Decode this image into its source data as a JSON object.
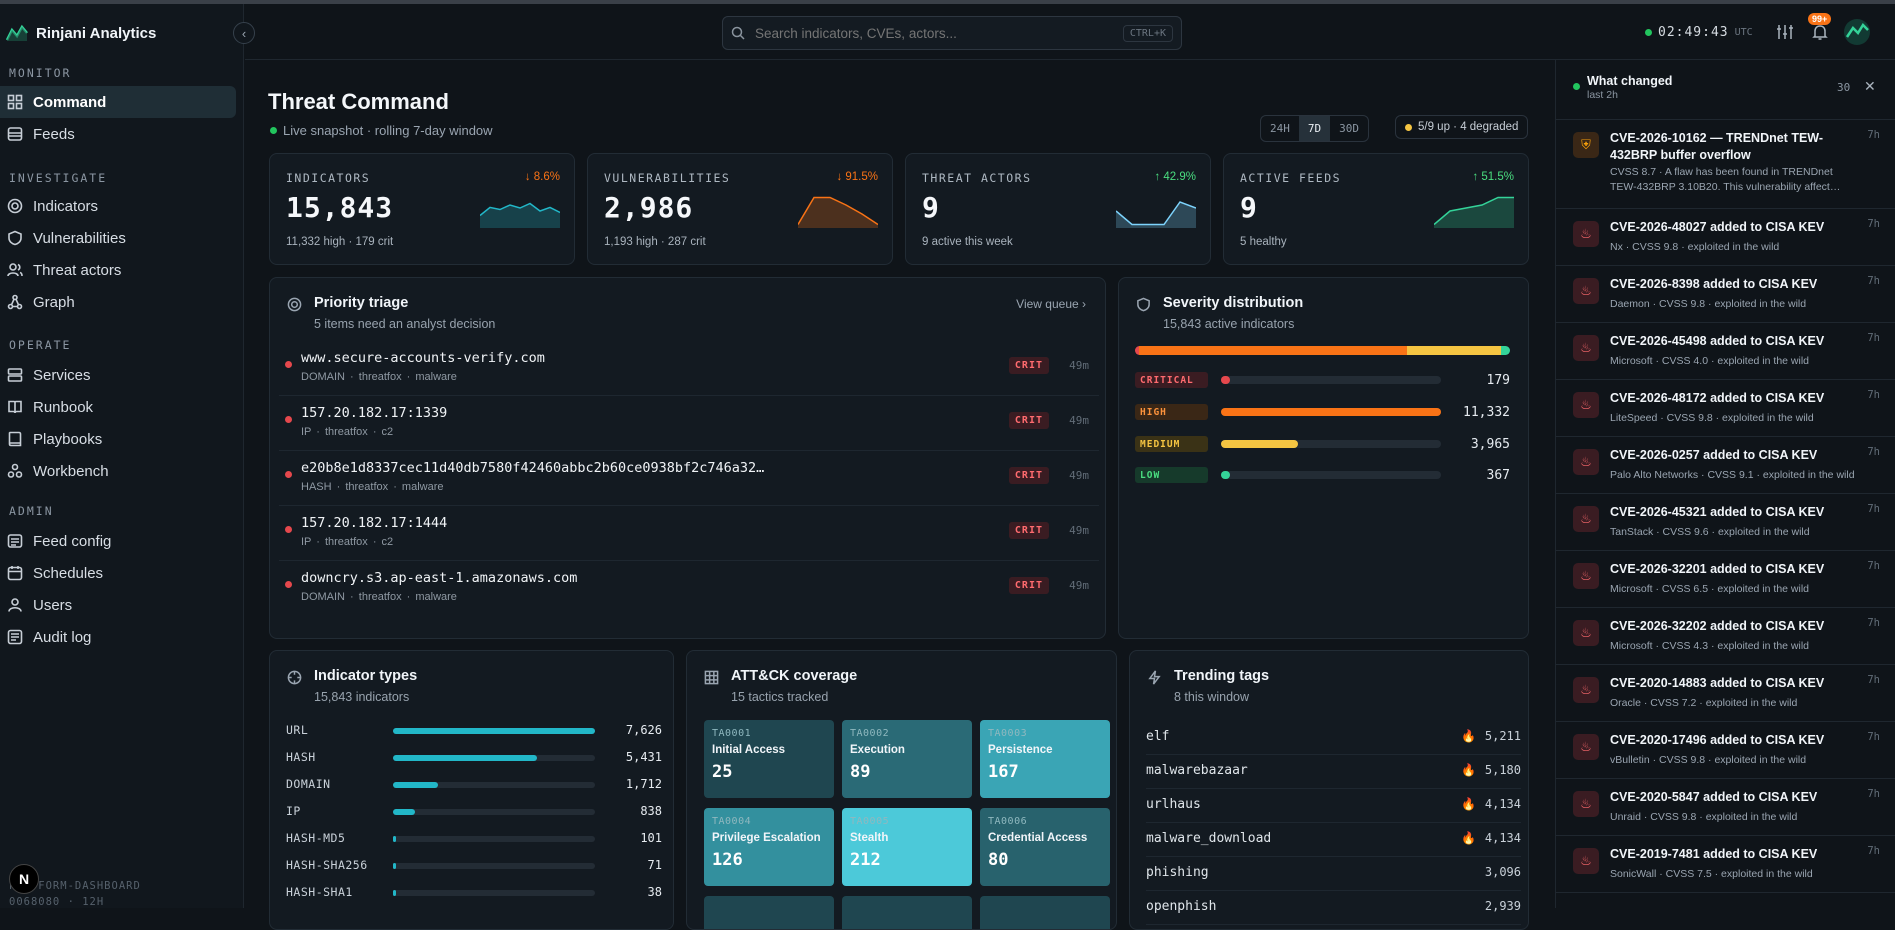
{
  "app": {
    "name": "Rinjani Analytics"
  },
  "sidebar": {
    "sections": [
      {
        "label": "MONITOR"
      },
      {
        "label": "INVESTIGATE"
      },
      {
        "label": "OPERATE"
      },
      {
        "label": "ADMIN"
      }
    ],
    "items": [
      {
        "label": "Command",
        "icon": "grid-icon",
        "active": true
      },
      {
        "label": "Feeds",
        "icon": "database-icon"
      },
      {
        "label": "Indicators",
        "icon": "target-icon"
      },
      {
        "label": "Vulnerabilities",
        "icon": "shield-icon"
      },
      {
        "label": "Threat actors",
        "icon": "users-icon"
      },
      {
        "label": "Graph",
        "icon": "graph-icon"
      },
      {
        "label": "Services",
        "icon": "server-icon"
      },
      {
        "label": "Runbook",
        "icon": "book-icon"
      },
      {
        "label": "Playbooks",
        "icon": "play-book-icon"
      },
      {
        "label": "Workbench",
        "icon": "workbench-icon"
      },
      {
        "label": "Feed config",
        "icon": "list-icon"
      },
      {
        "label": "Schedules",
        "icon": "calendar-icon"
      },
      {
        "label": "Users",
        "icon": "user-icon"
      },
      {
        "label": "Audit log",
        "icon": "log-icon"
      }
    ],
    "footer": {
      "badge": "N",
      "line1": "PLATFORM-DASHBOARD",
      "line2": "0068080 · 12H"
    }
  },
  "topbar": {
    "search_placeholder": "Search indicators, CVEs, actors...",
    "shortcut": "CTRL+K",
    "time": "02:49:43",
    "tz": "UTC",
    "notif_count": "99+"
  },
  "header": {
    "title": "Threat Command",
    "subtitle": "Live snapshot · rolling 7-day window",
    "ranges": [
      "24H",
      "7D",
      "30D"
    ],
    "active_range": "7D",
    "status": "5/9 up · 4 degraded"
  },
  "stats": [
    {
      "label": "INDICATORS",
      "value": "15,843",
      "sub": "11,332 high · 179 crit",
      "delta": "↓ 8.6%",
      "delta_color": "#f97316",
      "spark_color": "#22b7c8",
      "spark": [
        0.35,
        0.62,
        0.55,
        0.7,
        0.6,
        0.75,
        0.5,
        0.62,
        0.45
      ]
    },
    {
      "label": "VULNERABILITIES",
      "value": "2,986",
      "sub": "1,193 high · 287 crit",
      "delta": "↓ 91.5%",
      "delta_color": "#f97316",
      "spark_color": "#f97316",
      "spark": [
        0.05,
        0.95,
        0.95,
        0.7,
        0.4,
        0.05
      ]
    },
    {
      "label": "THREAT ACTORS",
      "value": "9",
      "sub": "9 active this week",
      "delta": "↑ 42.9%",
      "delta_color": "#4ade80",
      "spark_color": "#7dd3fc",
      "spark": [
        0.5,
        0.05,
        0.05,
        0.05,
        0.8,
        0.6
      ]
    },
    {
      "label": "ACTIVE FEEDS",
      "value": "9",
      "sub": "5 healthy",
      "delta": "↑ 51.5%",
      "delta_color": "#4ade80",
      "spark_color": "#34d399",
      "spark": [
        0.05,
        0.5,
        0.6,
        0.7,
        0.95,
        0.95
      ]
    }
  ],
  "triage": {
    "title": "Priority triage",
    "subtitle": "5 items need an analyst decision",
    "link": "View queue ›",
    "rows": [
      {
        "value": "www.secure-accounts-verify.com",
        "meta": "DOMAIN · threatfox · malware",
        "level": "CRIT",
        "age": "49m"
      },
      {
        "value": "157.20.182.17:1339",
        "meta": "IP · threatfox · c2",
        "level": "CRIT",
        "age": "49m"
      },
      {
        "value": "e20b8e1d8337cec11d40db7580f42460abbc2b60ce0938bf2c746a32…",
        "meta": "HASH · threatfox · malware",
        "level": "CRIT",
        "age": "49m"
      },
      {
        "value": "157.20.182.17:1444",
        "meta": "IP · threatfox · c2",
        "level": "CRIT",
        "age": "49m"
      },
      {
        "value": "downcry.s3.ap-east-1.amazonaws.com",
        "meta": "DOMAIN · threatfox · malware",
        "level": "CRIT",
        "age": "49m"
      }
    ]
  },
  "severity": {
    "title": "Severity distribution",
    "subtitle": "15,843 active indicators",
    "levels": [
      {
        "label": "CRITICAL",
        "value": "179",
        "count": 179,
        "color": "#e5484d",
        "tag_bg": "#3a1c22",
        "tag_fg": "#ff6b6f"
      },
      {
        "label": "HIGH",
        "value": "11,332",
        "count": 11332,
        "color": "#f97316",
        "tag_bg": "#3a2716",
        "tag_fg": "#fb923c"
      },
      {
        "label": "MEDIUM",
        "value": "3,965",
        "count": 3965,
        "color": "#f5c542",
        "tag_bg": "#3a3216",
        "tag_fg": "#f5c542"
      },
      {
        "label": "LOW",
        "value": "367",
        "count": 367,
        "color": "#34d399",
        "tag_bg": "#163a2b",
        "tag_fg": "#4ade80"
      }
    ]
  },
  "indicator_types": {
    "title": "Indicator types",
    "subtitle": "15,843 indicators",
    "rows": [
      {
        "label": "URL",
        "value": "7,626",
        "count": 7626
      },
      {
        "label": "HASH",
        "value": "5,431",
        "count": 5431
      },
      {
        "label": "DOMAIN",
        "value": "1,712",
        "count": 1712
      },
      {
        "label": "IP",
        "value": "838",
        "count": 838
      },
      {
        "label": "HASH-MD5",
        "value": "101",
        "count": 101
      },
      {
        "label": "HASH-SHA256",
        "value": "71",
        "count": 71
      },
      {
        "label": "HASH-SHA1",
        "value": "38",
        "count": 38
      }
    ]
  },
  "attack": {
    "title": "ATT&CK coverage",
    "subtitle": "15 tactics tracked",
    "tactics": [
      {
        "id": "TA0001",
        "name": "Initial Access",
        "count": "25",
        "color": "#1f4650"
      },
      {
        "id": "TA0002",
        "name": "Execution",
        "count": "89",
        "color": "#2a6a76"
      },
      {
        "id": "TA0003",
        "name": "Persistence",
        "count": "167",
        "color": "#3aa5b5"
      },
      {
        "id": "TA0004",
        "name": "Privilege Escalation",
        "count": "126",
        "color": "#33909e"
      },
      {
        "id": "TA0005",
        "name": "Stealth",
        "count": "212",
        "color": "#4cc9d9"
      },
      {
        "id": "TA0006",
        "name": "Credential Access",
        "count": "80",
        "color": "#28626d"
      }
    ]
  },
  "trending": {
    "title": "Trending tags",
    "subtitle": "8 this window",
    "tags": [
      {
        "name": "elf",
        "value": "5,211",
        "hot": true
      },
      {
        "name": "malwarebazaar",
        "value": "5,180",
        "hot": true
      },
      {
        "name": "urlhaus",
        "value": "4,134",
        "hot": true
      },
      {
        "name": "malware_download",
        "value": "4,134",
        "hot": true
      },
      {
        "name": "phishing",
        "value": "3,096",
        "hot": false
      },
      {
        "name": "openphish",
        "value": "2,939",
        "hot": false
      }
    ]
  },
  "changes": {
    "title": "What changed",
    "subtitle": "last 2h",
    "count": "30",
    "items": [
      {
        "title": "CVE-2026-10162 — TRENDnet TEW-432BRP buffer overflow",
        "desc": "CVSS 8.7 · A flaw has been found in TRENDnet TEW-432BRP 3.10B20. This vulnerability affect…",
        "age": "7h",
        "icon": "shield-icon"
      },
      {
        "title": "CVE-2026-48027 added to CISA KEV",
        "desc": "Nx · CVSS 9.8 · exploited in the wild",
        "age": "7h",
        "icon": "flame-icon"
      },
      {
        "title": "CVE-2026-8398 added to CISA KEV",
        "desc": "Daemon · CVSS 9.8 · exploited in the wild",
        "age": "7h",
        "icon": "flame-icon"
      },
      {
        "title": "CVE-2026-45498 added to CISA KEV",
        "desc": "Microsoft · CVSS 4.0 · exploited in the wild",
        "age": "7h",
        "icon": "flame-icon"
      },
      {
        "title": "CVE-2026-48172 added to CISA KEV",
        "desc": "LiteSpeed · CVSS 9.8 · exploited in the wild",
        "age": "7h",
        "icon": "flame-icon"
      },
      {
        "title": "CVE-2026-0257 added to CISA KEV",
        "desc": "Palo Alto Networks · CVSS 9.1 · exploited in the wild",
        "age": "7h",
        "icon": "flame-icon"
      },
      {
        "title": "CVE-2026-45321 added to CISA KEV",
        "desc": "TanStack · CVSS 9.6 · exploited in the wild",
        "age": "7h",
        "icon": "flame-icon"
      },
      {
        "title": "CVE-2026-32201 added to CISA KEV",
        "desc": "Microsoft · CVSS 6.5 · exploited in the wild",
        "age": "7h",
        "icon": "flame-icon"
      },
      {
        "title": "CVE-2026-32202 added to CISA KEV",
        "desc": "Microsoft · CVSS 4.3 · exploited in the wild",
        "age": "7h",
        "icon": "flame-icon"
      },
      {
        "title": "CVE-2020-14883 added to CISA KEV",
        "desc": "Oracle · CVSS 7.2 · exploited in the wild",
        "age": "7h",
        "icon": "flame-icon"
      },
      {
        "title": "CVE-2020-17496 added to CISA KEV",
        "desc": "vBulletin · CVSS 9.8 · exploited in the wild",
        "age": "7h",
        "icon": "flame-icon"
      },
      {
        "title": "CVE-2020-5847 added to CISA KEV",
        "desc": "Unraid · CVSS 9.8 · exploited in the wild",
        "age": "7h",
        "icon": "flame-icon"
      },
      {
        "title": "CVE-2019-7481 added to CISA KEV",
        "desc": "SonicWall · CVSS 7.5 · exploited in the wild",
        "age": "7h",
        "icon": "flame-icon"
      }
    ]
  }
}
